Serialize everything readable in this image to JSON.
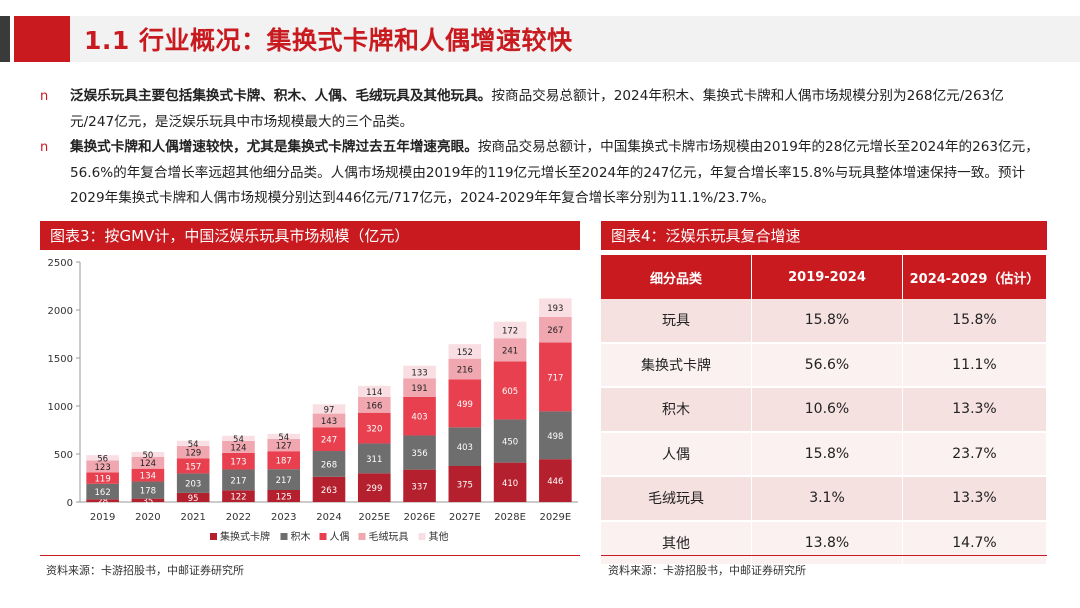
{
  "header": {
    "title": "1.1 行业概况：集换式卡牌和人偶增速较快"
  },
  "bullets": [
    {
      "marker": "n",
      "bold": "泛娱乐玩具主要包括集换式卡牌、积木、人偶、毛绒玩具及其他玩具。",
      "text": "按商品交易总额计，2024年积木、集换式卡牌和人偶市场规模分别为268亿元/263亿元/247亿元，是泛娱乐玩具中市场规模最大的三个品类。"
    },
    {
      "marker": "n",
      "bold": "集换式卡牌和人偶增速较快，尤其是集换式卡牌过去五年增速亮眼。",
      "text": "按商品交易总额计，中国集换式卡牌市场规模由2019年的28亿元增长至2024年的263亿元，56.6%的年复合增长率远超其他细分品类。人偶市场规模由2019年的119亿元增长至2024年的247亿元，年复合增长率15.8%与玩具整体增速保持一致。预计2029年集换式卡牌和人偶市场规模分别达到446亿元/717亿元，2024-2029年年复合增长率分别为11.1%/23.7%。"
    }
  ],
  "chart_panel": {
    "title": "图表3：按GMV计，中国泛娱乐玩具市场规模（亿元）",
    "source": "资料来源：卡游招股书，中邮证券研究所"
  },
  "table_panel": {
    "title": "图表4：泛娱乐玩具复合增速",
    "source": "资料来源：卡游招股书，中邮证券研究所"
  },
  "chart_data": {
    "type": "bar",
    "stacked": true,
    "title": "按GMV计，中国泛娱乐玩具市场规模（亿元）",
    "categories": [
      "2019",
      "2020",
      "2021",
      "2022",
      "2023",
      "2024",
      "2025E",
      "2026E",
      "2027E",
      "2028E",
      "2029E"
    ],
    "ylim": [
      0,
      2500
    ],
    "yticks": [
      0,
      500,
      1000,
      1500,
      2000,
      2500
    ],
    "legend_position": "bottom",
    "series": [
      {
        "name": "集换式卡牌",
        "color": "#b5202e",
        "values": [
          28,
          35,
          95,
          122,
          125,
          263,
          299,
          337,
          375,
          410,
          446
        ]
      },
      {
        "name": "积木",
        "color": "#6e6e6e",
        "values": [
          162,
          178,
          203,
          217,
          217,
          268,
          311,
          356,
          403,
          450,
          498
        ]
      },
      {
        "name": "人偶",
        "color": "#e8404e",
        "values": [
          119,
          134,
          157,
          173,
          187,
          247,
          320,
          403,
          499,
          605,
          717
        ]
      },
      {
        "name": "毛绒玩具",
        "color": "#f0a7b0",
        "values": [
          123,
          124,
          129,
          124,
          127,
          143,
          166,
          191,
          216,
          241,
          267
        ]
      },
      {
        "name": "其他",
        "color": "#f9dfe3",
        "values": [
          56,
          50,
          54,
          54,
          54,
          97,
          114,
          133,
          152,
          172,
          193
        ]
      }
    ]
  },
  "growth_table": {
    "headers": [
      "细分品类",
      "2019-2024",
      "2024-2029（估计）"
    ],
    "rows": [
      [
        "玩具",
        "15.8%",
        "15.8%"
      ],
      [
        "集换式卡牌",
        "56.6%",
        "11.1%"
      ],
      [
        "积木",
        "10.6%",
        "13.3%"
      ],
      [
        "人偶",
        "15.8%",
        "23.7%"
      ],
      [
        "毛绒玩具",
        "3.1%",
        "13.3%"
      ],
      [
        "其他",
        "13.8%",
        "14.7%"
      ]
    ]
  }
}
